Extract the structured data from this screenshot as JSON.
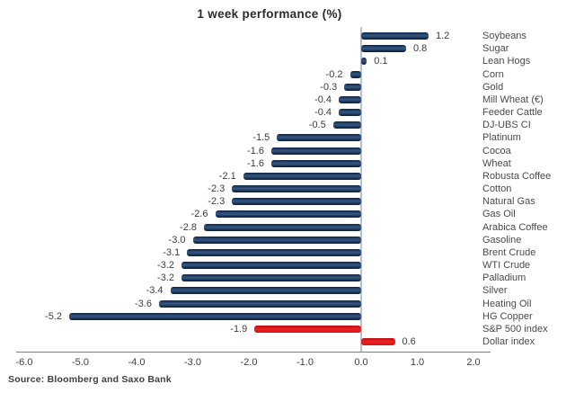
{
  "chart_data": {
    "type": "bar",
    "orientation": "horizontal",
    "title": "1 week performance (%)",
    "categories": [
      "Soybeans",
      "Sugar",
      "Lean Hogs",
      "Corn",
      "Gold",
      "Mill Wheat (€)",
      "Feeder Cattle",
      "DJ-UBS CI",
      "Platinum",
      "Cocoa",
      "Wheat",
      "Robusta Coffee",
      "Cotton",
      "Natural Gas",
      "Gas Oil",
      "Arabica Coffee",
      "Gasoline",
      "Brent Crude",
      "WTI Crude",
      "Palladium",
      "Silver",
      "Heating Oil",
      "HG Copper",
      "S&P 500 index",
      "Dollar index"
    ],
    "values": [
      1.2,
      0.8,
      0.1,
      -0.2,
      -0.3,
      -0.4,
      -0.4,
      -0.5,
      -1.5,
      -1.6,
      -1.6,
      -2.1,
      -2.3,
      -2.3,
      -2.6,
      -2.8,
      -3.0,
      -3.1,
      -3.2,
      -3.2,
      -3.4,
      -3.6,
      -5.2,
      -1.9,
      0.6
    ],
    "value_labels": [
      "1.2",
      "0.8",
      "0.1",
      "-0.2",
      "-0.3",
      "-0.4",
      "-0.4",
      "-0.5",
      "-1.5",
      "-1.6",
      "-1.6",
      "-2.1",
      "-2.3",
      "-2.3",
      "-2.6",
      "-2.8",
      "-3.0",
      "-3.1",
      "-3.2",
      "-3.2",
      "-3.4",
      "-3.6",
      "-5.2",
      "-1.9",
      "0.6"
    ],
    "bar_color_keys": [
      "navy",
      "navy",
      "navy",
      "navy",
      "navy",
      "navy",
      "navy",
      "navy",
      "navy",
      "navy",
      "navy",
      "navy",
      "navy",
      "navy",
      "navy",
      "navy",
      "navy",
      "navy",
      "navy",
      "navy",
      "navy",
      "navy",
      "navy",
      "red",
      "red"
    ],
    "palette": {
      "navy": "#1c3a5e",
      "red": "#e8141a"
    },
    "xlim": [
      -6.0,
      2.0
    ],
    "x_tick_values": [
      -6,
      -5,
      -4,
      -3,
      -2,
      -1,
      0,
      1,
      2
    ],
    "x_tick_labels": [
      "-6.0",
      "-5.0",
      "-4.0",
      "-3.0",
      "-2.0",
      "-1.0",
      "0.0",
      "1.0",
      "2.0"
    ],
    "legend": "none",
    "grid": "zero-line-only",
    "value_label_position": "outside-bar-end",
    "category_label_position": "right-of-plot"
  },
  "source": "Source: Bloomberg and Saxo Bank"
}
